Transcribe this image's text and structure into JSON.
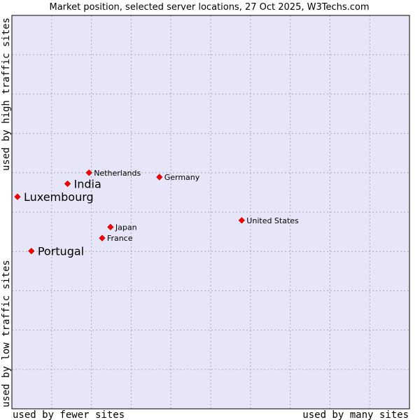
{
  "chart_data": {
    "type": "scatter",
    "title": "Market position, selected server locations, 27 Oct 2025, W3Techs.com",
    "xlabel_left": "used by fewer sites",
    "xlabel_right": "used by many sites",
    "ylabel_top": "used by high traffic sites",
    "ylabel_bottom": "used by low traffic sites",
    "xlim": [
      0,
      100
    ],
    "ylim": [
      0,
      100
    ],
    "grid": true,
    "colors": {
      "plot_bg": "#e6e6f8",
      "grid": "#aaaaaa",
      "frame": "#000000",
      "marker": "#ff0000",
      "marker_edge": "#aa0000",
      "text": "#000000"
    },
    "points": [
      {
        "label": "Netherlands",
        "x": 19.4,
        "y": 60.0,
        "emphasis": false
      },
      {
        "label": "India",
        "x": 14.0,
        "y": 57.2,
        "emphasis": true
      },
      {
        "label": "Germany",
        "x": 37.1,
        "y": 58.9,
        "emphasis": false
      },
      {
        "label": "Luxembourg",
        "x": 1.4,
        "y": 53.9,
        "emphasis": true
      },
      {
        "label": "United States",
        "x": 57.8,
        "y": 47.9,
        "emphasis": false
      },
      {
        "label": "Japan",
        "x": 24.8,
        "y": 46.2,
        "emphasis": false
      },
      {
        "label": "France",
        "x": 22.7,
        "y": 43.4,
        "emphasis": false
      },
      {
        "label": "Portugal",
        "x": 4.9,
        "y": 40.1,
        "emphasis": true
      }
    ]
  }
}
